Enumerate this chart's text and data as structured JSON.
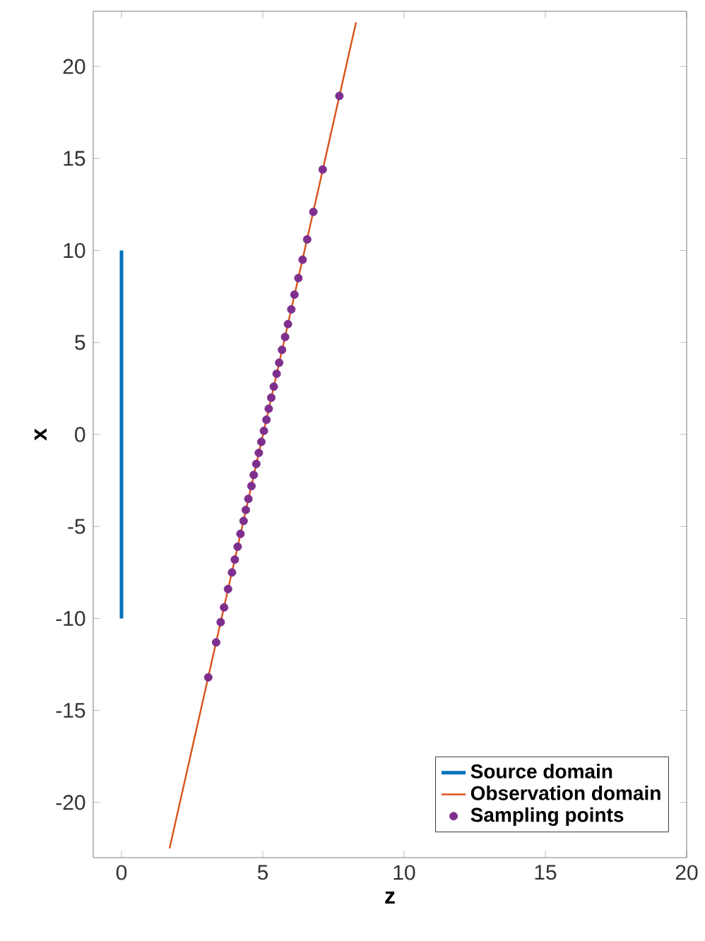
{
  "chart_data": {
    "type": "line",
    "xlabel": "z",
    "ylabel": "x",
    "xlim": [
      -1,
      20
    ],
    "ylim": [
      -23,
      23
    ],
    "xticks": [
      0,
      5,
      10,
      15,
      20
    ],
    "yticks": [
      -20,
      -15,
      -10,
      -5,
      0,
      5,
      10,
      15,
      20
    ],
    "legend": "bottom right",
    "grid": false,
    "series": [
      {
        "name": "Source domain",
        "color": "#0072bd",
        "x": [
          0,
          0
        ],
        "values": [
          -10,
          10
        ]
      },
      {
        "name": "Observation domain",
        "color": "#d95319",
        "x": [
          1.7,
          8.3
        ],
        "values": [
          -22.5,
          22.4
        ]
      },
      {
        "name": "Sampling points",
        "type": "scatter",
        "color": "#7e2f8e",
        "x": [
          7.71,
          7.12,
          6.79,
          6.57,
          6.41,
          6.26,
          6.12,
          6.01,
          5.89,
          5.79,
          5.68,
          5.58,
          5.49,
          5.39,
          5.3,
          5.21,
          5.13,
          5.04,
          4.95,
          4.86,
          4.77,
          4.68,
          4.6,
          4.49,
          4.4,
          4.32,
          4.21,
          4.11,
          4.01,
          3.91,
          3.77,
          3.63,
          3.51,
          3.35,
          3.07
        ],
        "values": [
          18.4,
          14.4,
          12.1,
          10.6,
          9.5,
          8.5,
          7.6,
          6.8,
          6.0,
          5.3,
          4.6,
          3.9,
          3.3,
          2.6,
          2.0,
          1.4,
          0.8,
          0.2,
          -0.4,
          -1.0,
          -1.6,
          -2.2,
          -2.8,
          -3.5,
          -4.1,
          -4.7,
          -5.4,
          -6.1,
          -6.8,
          -7.5,
          -8.4,
          -9.4,
          -10.2,
          -11.3,
          -13.2
        ]
      }
    ]
  }
}
